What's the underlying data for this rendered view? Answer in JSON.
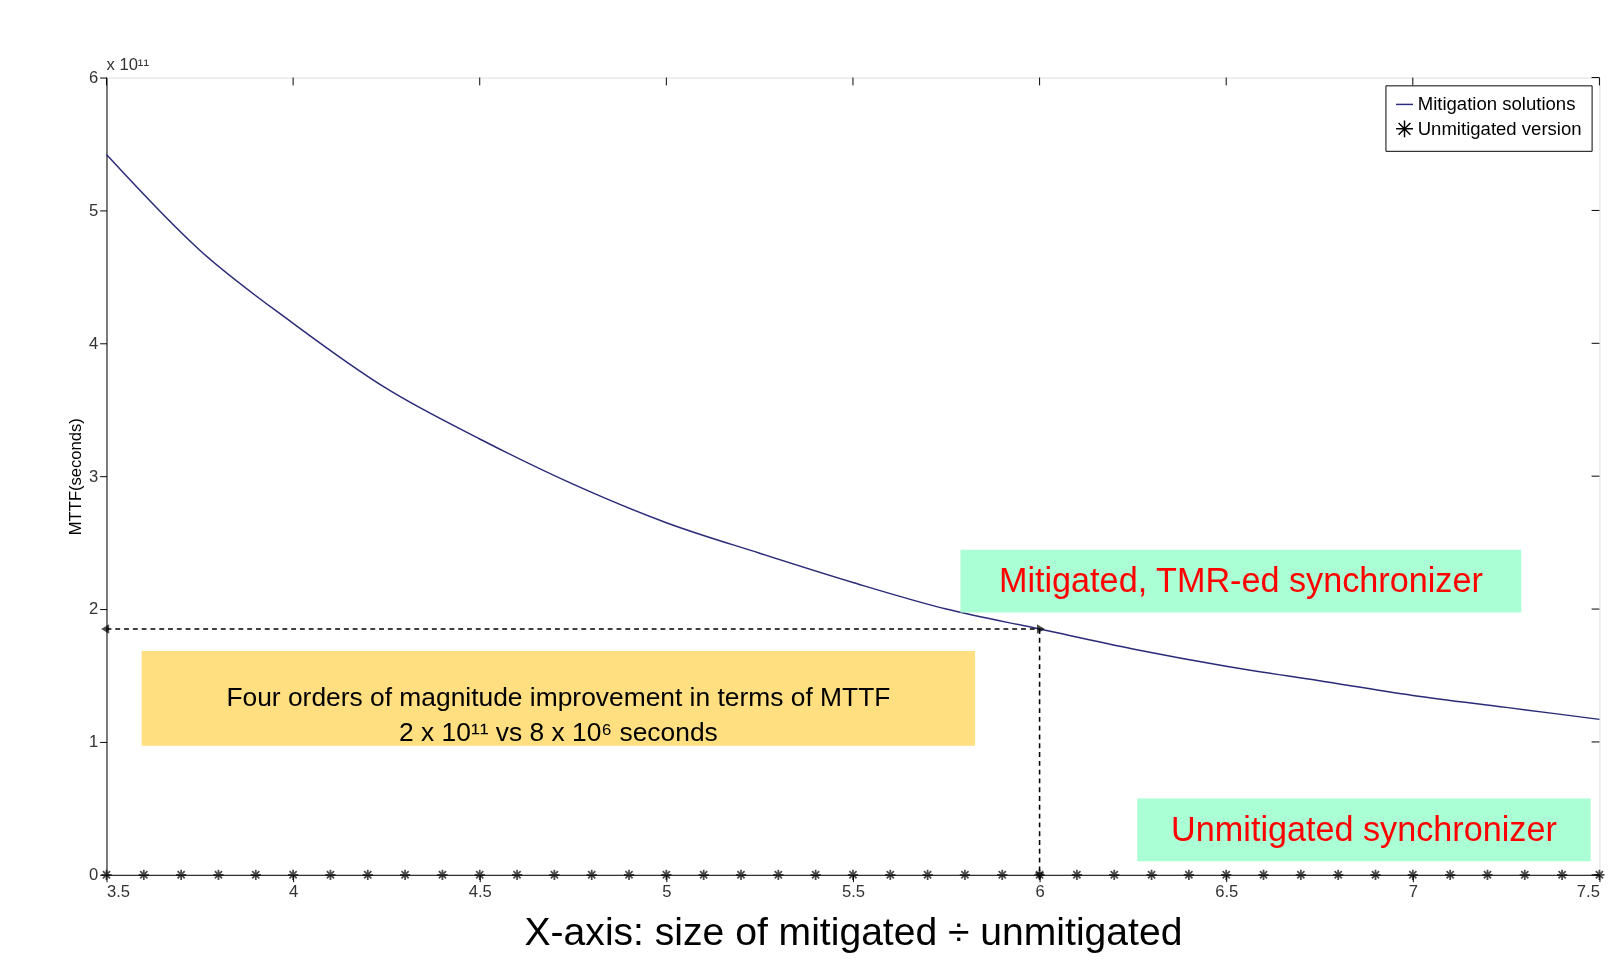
{
  "chart_data": {
    "type": "line",
    "xlabel": "X-axis: size of mitigated ÷ unmitigated",
    "ylabel": "MTTF(seconds)",
    "x": [
      3.5,
      3.75,
      4.0,
      4.25,
      4.5,
      4.75,
      5.0,
      5.25,
      5.5,
      5.75,
      6.0,
      6.25,
      6.5,
      6.75,
      7.0,
      7.25,
      7.5
    ],
    "series": [
      {
        "name": "Mitigation solutions",
        "color": "#2a2a78",
        "values": [
          5.42,
          4.7,
          4.15,
          3.66,
          3.28,
          2.94,
          2.65,
          2.42,
          2.2,
          2.0,
          1.85,
          1.7,
          1.57,
          1.46,
          1.35,
          1.26,
          1.17
        ]
      },
      {
        "name": "Unmitigated version",
        "type": "scatter",
        "color": "#000000",
        "marker": "cross",
        "x": [
          3.5,
          3.6,
          3.7,
          3.8,
          3.9,
          4.0,
          4.1,
          4.2,
          4.3,
          4.4,
          4.5,
          4.6,
          4.7,
          4.8,
          4.9,
          5.0,
          5.1,
          5.2,
          5.3,
          5.4,
          5.5,
          5.6,
          5.7,
          5.8,
          5.9,
          6.0,
          6.1,
          6.2,
          6.3,
          6.4,
          6.5,
          6.6,
          6.7,
          6.8,
          6.9,
          7.0,
          7.1,
          7.2,
          7.3,
          7.4,
          7.5
        ],
        "values": [
          0,
          0,
          0,
          0,
          0,
          0,
          0,
          0,
          0,
          0,
          0,
          0,
          0,
          0,
          0,
          0,
          0,
          0,
          0,
          0,
          0,
          0,
          0,
          0,
          0,
          0,
          0,
          0,
          0,
          0,
          0,
          0,
          0,
          0,
          0,
          0,
          0,
          0,
          0,
          0,
          0
        ]
      }
    ],
    "xlim": [
      3.5,
      7.5
    ],
    "xticks": [
      3.5,
      4,
      4.5,
      5,
      5.5,
      6,
      6.5,
      7,
      7.5
    ],
    "ylim": [
      0,
      6
    ],
    "yticks": [
      0,
      1,
      2,
      3,
      4,
      5,
      6
    ],
    "legend": "top right",
    "annotations": [
      "x 10¹¹",
      "Unmitigated synchronizer",
      "Four orders of magnitude improvement in terms of MTTF\n2 x 10¹¹ vs 8 x 10⁶ seconds",
      {
        "text": "Mitigated, TMR-ed synchronizer",
        "x": 6,
        "y": 1.85
      }
    ]
  }
}
